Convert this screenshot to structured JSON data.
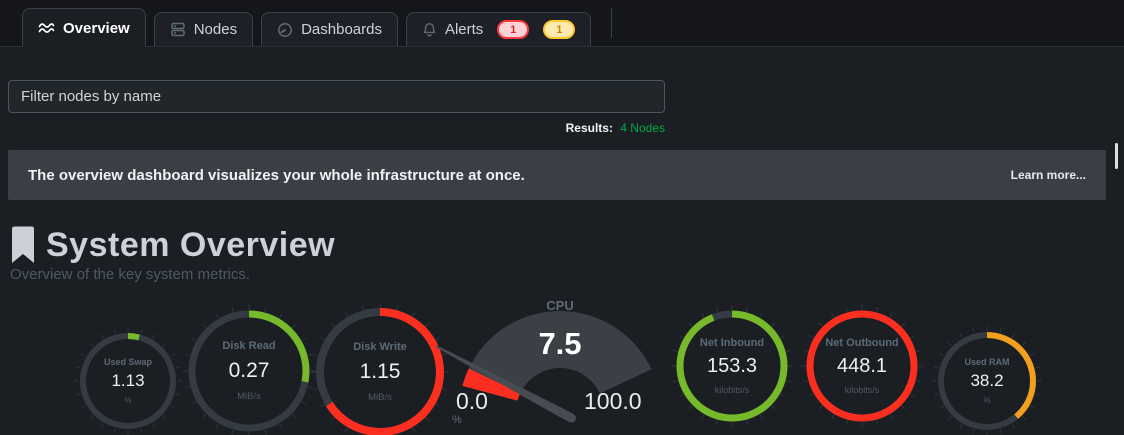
{
  "tabs": [
    {
      "label": "Overview",
      "icon": "area-chart",
      "active": true
    },
    {
      "label": "Nodes",
      "icon": "server-stack",
      "active": false
    },
    {
      "label": "Dashboards",
      "icon": "gauge",
      "active": false
    },
    {
      "label": "Alerts",
      "icon": "bell",
      "active": false,
      "badges": [
        {
          "value": "1",
          "type": "critical"
        },
        {
          "value": "1",
          "type": "warning"
        }
      ]
    }
  ],
  "filter": {
    "placeholder": "Filter nodes by name",
    "value": ""
  },
  "results": {
    "label": "Results:",
    "value": "4 Nodes"
  },
  "banner": {
    "text": "The overview dashboard visualizes your whole infrastructure at once.",
    "link": "Learn more..."
  },
  "section": {
    "title": "System Overview",
    "subtitle": "Overview of the key system metrics."
  },
  "colors": {
    "critical_badge": "#ff3a3f",
    "warning_badge": "#ffc82e",
    "gauge_green": "#76b92a",
    "gauge_red": "#fc2e1f",
    "gauge_orange": "#f0a01e",
    "results_green": "#00ab44"
  },
  "chart_data": [
    {
      "type": "gauge",
      "style": "ring",
      "title": "Used Swap",
      "value": 1.13,
      "value_label": "1.13",
      "units": "%",
      "fill_fraction": 0.04,
      "color": "#76b92a"
    },
    {
      "type": "gauge",
      "style": "ring",
      "title": "Disk Read",
      "value": 0.27,
      "value_label": "0.27",
      "units": "MiB/s",
      "fill_fraction": 0.28,
      "color": "#76b92a"
    },
    {
      "type": "gauge",
      "style": "ring",
      "title": "Disk Write",
      "value": 1.15,
      "value_label": "1.15",
      "units": "MiB/s",
      "fill_fraction": 0.66,
      "color": "#fc2e1f"
    },
    {
      "type": "gauge",
      "style": "meter",
      "title": "CPU",
      "value": 7.5,
      "value_label": "7.5",
      "units": "%",
      "min": 0,
      "max": 100,
      "min_label": "0.0",
      "max_label": "100.0",
      "color": "#fc2e1f"
    },
    {
      "type": "gauge",
      "style": "ring",
      "title": "Net Inbound",
      "value": 153.3,
      "value_label": "153.3",
      "units": "kilobits/s",
      "fill_fraction": 0.94,
      "color": "#76b92a"
    },
    {
      "type": "gauge",
      "style": "ring",
      "title": "Net Outbound",
      "value": 448.1,
      "value_label": "448.1",
      "units": "kilobits/s",
      "fill_fraction": 1.0,
      "color": "#fc2e1f"
    },
    {
      "type": "gauge",
      "style": "ring",
      "title": "Used RAM",
      "value": 38.2,
      "value_label": "38.2",
      "units": "%",
      "fill_fraction": 0.39,
      "color": "#f0a01e"
    }
  ]
}
